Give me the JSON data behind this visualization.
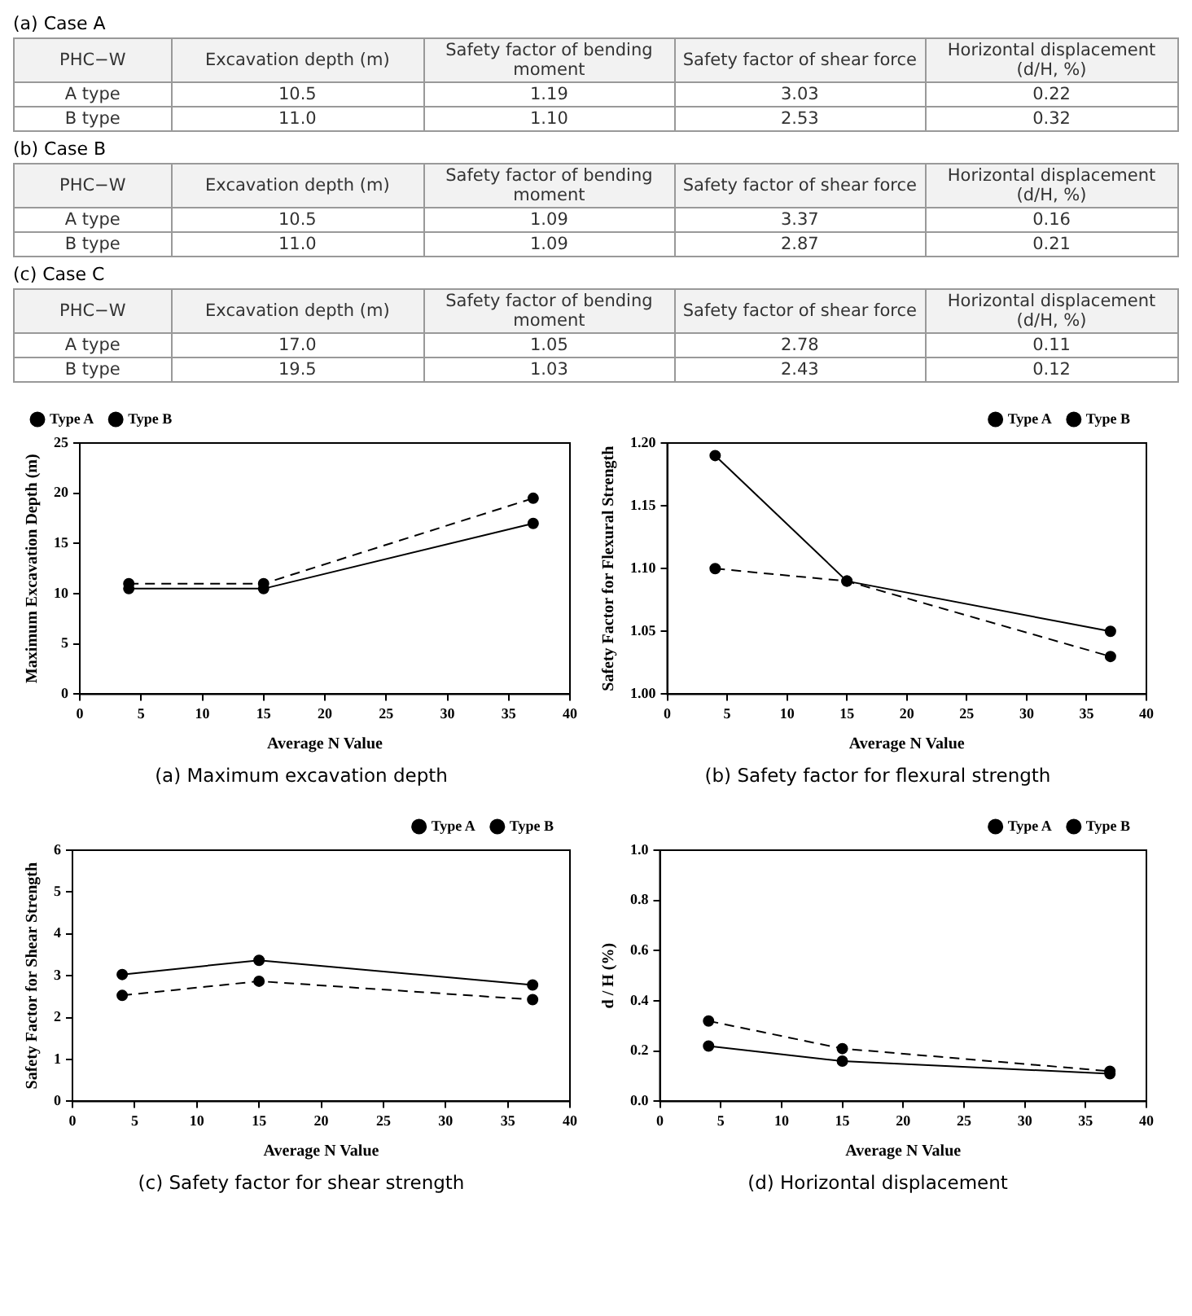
{
  "chart_data": [
    {
      "type": "other",
      "title": "(a) Case A",
      "ylabel": "PHC−W",
      "categories": [
        "Excavation depth (m)",
        "Safety factor of bending moment",
        "Safety factor of shear force",
        "Horizontal displacement (d/H, %)"
      ],
      "y_categories": [
        "A type",
        "B type"
      ],
      "cell_labels": [
        [
          "10.5",
          "1.19",
          "3.03",
          "0.22"
        ],
        [
          "11.0",
          "1.10",
          "2.53",
          "0.32"
        ]
      ]
    },
    {
      "type": "other",
      "title": "(b) Case B",
      "ylabel": "PHC−W",
      "categories": [
        "Excavation depth (m)",
        "Safety factor of bending moment",
        "Safety factor of shear force",
        "Horizontal displacement (d/H, %)"
      ],
      "y_categories": [
        "A type",
        "B type"
      ],
      "cell_labels": [
        [
          "10.5",
          "1.09",
          "3.37",
          "0.16"
        ],
        [
          "11.0",
          "1.09",
          "2.87",
          "0.21"
        ]
      ]
    },
    {
      "type": "other",
      "title": "(c) Case C",
      "ylabel": "PHC−W",
      "categories": [
        "Excavation depth (m)",
        "Safety factor of bending moment",
        "Safety factor of shear force",
        "Horizontal displacement (d/H, %)"
      ],
      "y_categories": [
        "A type",
        "B type"
      ],
      "cell_labels": [
        [
          "17.0",
          "1.05",
          "2.78",
          "0.11"
        ],
        [
          "19.5",
          "1.03",
          "2.43",
          "0.12"
        ]
      ]
    },
    {
      "type": "line",
      "title": "(a) Maximum excavation depth",
      "xlabel": "Average N Value",
      "ylabel": "Maximum Excavation Depth (m)",
      "x": [
        4,
        15,
        37
      ],
      "xlim": [
        0,
        40
      ],
      "xticks": [
        0,
        5,
        10,
        15,
        20,
        25,
        30,
        35,
        40
      ],
      "ylim": [
        0,
        25
      ],
      "yticks": [
        0,
        5,
        10,
        15,
        20,
        25
      ],
      "grid": false,
      "legend": "top left",
      "marker": "circle",
      "series": [
        {
          "name": "Type A",
          "color": "#000000",
          "line_style": "solid",
          "values": [
            10.5,
            10.5,
            17
          ]
        },
        {
          "name": "Type B",
          "color": "#000000",
          "line_style": "dashed",
          "values": [
            11,
            11,
            19.5
          ]
        }
      ]
    },
    {
      "type": "line",
      "title": "(b) Safety factor for flexural strength",
      "xlabel": "Average N Value",
      "ylabel": "Safety Factor for Flexural Strength",
      "x": [
        4,
        15,
        37
      ],
      "xlim": [
        0,
        40
      ],
      "xticks": [
        0,
        5,
        10,
        15,
        20,
        25,
        30,
        35,
        40
      ],
      "ylim": [
        1.0,
        1.2
      ],
      "yticks": [
        {
          "value": 1.0,
          "label": "1.00"
        },
        {
          "value": 1.05,
          "label": "1.05"
        },
        {
          "value": 1.1,
          "label": "1.10"
        },
        {
          "value": 1.15,
          "label": "1.15"
        },
        {
          "value": 1.2,
          "label": "1.20"
        }
      ],
      "grid": false,
      "legend": "top right",
      "marker": "circle",
      "series": [
        {
          "name": "Type A",
          "color": "#000000",
          "line_style": "solid",
          "values": [
            1.19,
            1.09,
            1.05
          ]
        },
        {
          "name": "Type B",
          "color": "#000000",
          "line_style": "dashed",
          "values": [
            1.1,
            1.09,
            1.03
          ]
        }
      ]
    },
    {
      "type": "line",
      "title": "(c) Safety factor for shear strength",
      "xlabel": "Average N Value",
      "ylabel": "Safety Factor for Shear Strength",
      "x": [
        4,
        15,
        37
      ],
      "xlim": [
        0,
        40
      ],
      "xticks": [
        0,
        5,
        10,
        15,
        20,
        25,
        30,
        35,
        40
      ],
      "ylim": [
        0,
        6
      ],
      "yticks": [
        0,
        1,
        2,
        3,
        4,
        5,
        6
      ],
      "grid": false,
      "legend": "top right",
      "marker": "circle",
      "series": [
        {
          "name": "Type A",
          "color": "#000000",
          "line_style": "solid",
          "values": [
            3.03,
            3.37,
            2.78
          ]
        },
        {
          "name": "Type B",
          "color": "#000000",
          "line_style": "dashed",
          "values": [
            2.53,
            2.87,
            2.43
          ]
        }
      ]
    },
    {
      "type": "line",
      "title": "(d) Horizontal displacement",
      "xlabel": "Average N Value",
      "ylabel": "d / H (%)",
      "x": [
        4,
        15,
        37
      ],
      "xlim": [
        0,
        40
      ],
      "xticks": [
        0,
        5,
        10,
        15,
        20,
        25,
        30,
        35,
        40
      ],
      "ylim": [
        0,
        1.0
      ],
      "yticks": [
        {
          "value": 0,
          "label": "0.0"
        },
        0.2,
        0.4,
        0.6,
        0.8,
        {
          "value": 1.0,
          "label": "1.0"
        }
      ],
      "grid": false,
      "legend": "top right",
      "marker": "circle",
      "series": [
        {
          "name": "Type A",
          "color": "#000000",
          "line_style": "solid",
          "values": [
            0.22,
            0.16,
            0.11
          ]
        },
        {
          "name": "Type B",
          "color": "#000000",
          "line_style": "dashed",
          "values": [
            0.32,
            0.21,
            0.12
          ]
        }
      ]
    }
  ]
}
